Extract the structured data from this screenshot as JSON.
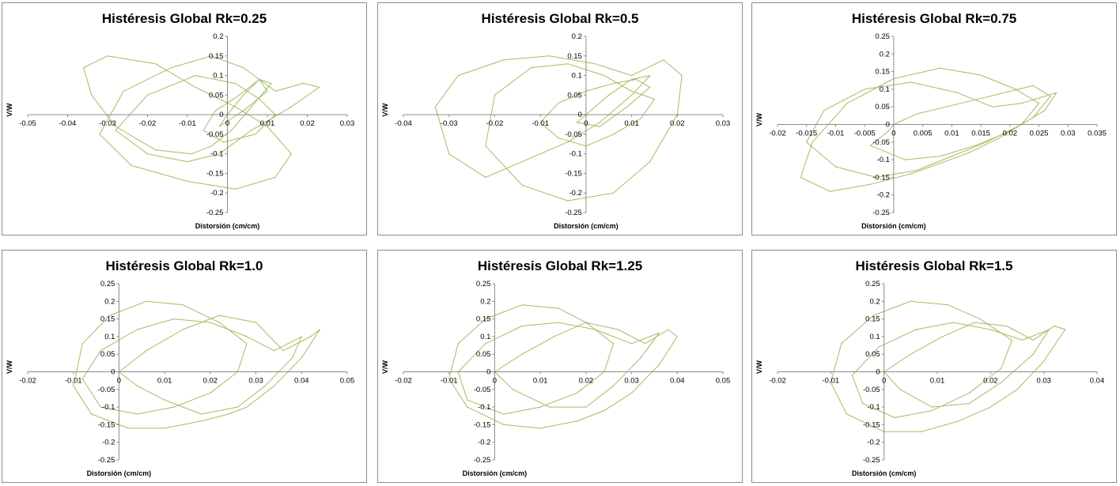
{
  "chart_data": [
    {
      "type": "scatter",
      "title": "Histéresis Global Rk=0.25",
      "xlabel": "Distorsión (cm/cm)",
      "ylabel": "V/W",
      "xlim": [
        -0.05,
        0.03
      ],
      "ylim": [
        -0.25,
        0.2
      ],
      "xticks": [
        "-0.05",
        "-0.04",
        "-0.03",
        "-0.02",
        "-0.01",
        "0",
        "0.01",
        "0.02",
        "0.03"
      ],
      "yticks": [
        "-0.25",
        "-0.2",
        "-0.15",
        "-0.1",
        "-0.05",
        "0",
        "0.05",
        "0.1",
        "0.15",
        "0.2"
      ],
      "series_color": "#9bbb59",
      "grid": false,
      "legend": "none",
      "series": [
        {
          "x": [
            0,
            0.004,
            0.008,
            0.011,
            0.006,
            0.001,
            -0.004,
            -0.009,
            -0.018,
            -0.028,
            -0.034,
            -0.036,
            -0.03,
            -0.018,
            -0.008,
            0.002,
            0.01,
            0.016,
            0.012,
            0.002,
            -0.01,
            -0.024,
            -0.032,
            -0.026,
            -0.014,
            -0.004,
            0.004,
            0.012,
            0.019,
            0.023,
            0.016,
            0.006,
            -0.002,
            -0.01,
            -0.02,
            -0.028,
            -0.02,
            -0.008,
            0.002,
            0.008,
            0.012,
            0.007,
            -0.001,
            -0.006,
            -0.003,
            0.003,
            0.008,
            0.01,
            0.004,
            -0.002,
            0
          ],
          "y": [
            0,
            0.05,
            0.09,
            0.08,
            0.02,
            -0.04,
            -0.08,
            -0.1,
            -0.09,
            -0.03,
            0.05,
            0.12,
            0.15,
            0.13,
            0.07,
            0.02,
            -0.03,
            -0.1,
            -0.16,
            -0.19,
            -0.17,
            -0.13,
            -0.05,
            0.06,
            0.12,
            0.15,
            0.12,
            0.06,
            0.08,
            0.07,
            0.02,
            -0.04,
            -0.1,
            -0.12,
            -0.1,
            -0.04,
            0.05,
            0.1,
            0.08,
            0.04,
            0.0,
            -0.05,
            -0.07,
            -0.04,
            0.01,
            0.05,
            0.09,
            0.06,
            0.01,
            -0.03,
            0
          ]
        }
      ]
    },
    {
      "type": "scatter",
      "title": "Histéresis Global Rk=0.5",
      "xlabel": "Distorsión (cm/cm)",
      "ylabel": "V/W",
      "xlim": [
        -0.04,
        0.03
      ],
      "ylim": [
        -0.25,
        0.2
      ],
      "xticks": [
        "-0.04",
        "-0.03",
        "-0.02",
        "-0.01",
        "0",
        "0.01",
        "0.02",
        "0.03"
      ],
      "yticks": [
        "-0.25",
        "-0.2",
        "-0.15",
        "-0.1",
        "-0.05",
        "0",
        "0.05",
        "0.1",
        "0.15",
        "0.2"
      ],
      "series_color": "#9bbb59",
      "grid": false,
      "legend": "none",
      "series": [
        {
          "x": [
            0,
            0.005,
            0.01,
            0.014,
            0.01,
            0.003,
            -0.004,
            -0.012,
            -0.022,
            -0.03,
            -0.033,
            -0.028,
            -0.018,
            -0.008,
            0.002,
            0.01,
            0.017,
            0.021,
            0.02,
            0.014,
            0.006,
            -0.004,
            -0.014,
            -0.022,
            -0.02,
            -0.012,
            -0.004,
            0.004,
            0.01,
            0.015,
            0.012,
            0.006,
            0.0,
            -0.006,
            -0.01,
            -0.006,
            0.0,
            0.006,
            0.011,
            0.014,
            0.009,
            0.003,
            -0.002,
            0
          ],
          "y": [
            0,
            0.05,
            0.09,
            0.1,
            0.05,
            -0.02,
            -0.07,
            -0.11,
            -0.16,
            -0.1,
            0.02,
            0.1,
            0.14,
            0.15,
            0.13,
            0.1,
            0.14,
            0.1,
            0.0,
            -0.12,
            -0.2,
            -0.22,
            -0.18,
            -0.08,
            0.05,
            0.12,
            0.13,
            0.1,
            0.06,
            0.04,
            -0.01,
            -0.05,
            -0.08,
            -0.06,
            -0.02,
            0.03,
            0.06,
            0.08,
            0.09,
            0.07,
            0.02,
            -0.03,
            -0.02,
            0
          ]
        }
      ]
    },
    {
      "type": "scatter",
      "title": "Histéresis Global Rk=0.75",
      "xlabel": "Distorsión (cm/cm)",
      "ylabel": "V/W",
      "xlim": [
        -0.02,
        0.035
      ],
      "ylim": [
        -0.25,
        0.25
      ],
      "xticks": [
        "-0.02",
        "-0.015",
        "-0.01",
        "-0.005",
        "0",
        "0.005",
        "0.01",
        "0.015",
        "0.02",
        "0.025",
        "0.03",
        "0.035"
      ],
      "yticks": [
        "-0.25",
        "-0.2",
        "-0.15",
        "-0.1",
        "-0.05",
        "0",
        "0.05",
        "0.1",
        "0.15",
        "0.2",
        "0.25"
      ],
      "series_color": "#9bbb59",
      "grid": false,
      "legend": "none",
      "series": [
        {
          "x": [
            0,
            0.004,
            0.009,
            0.014,
            0.019,
            0.024,
            0.027,
            0.024,
            0.018,
            0.013,
            0.008,
            0.003,
            -0.004,
            -0.011,
            -0.016,
            -0.014,
            -0.008,
            0.0,
            0.008,
            0.015,
            0.021,
            0.025,
            0.022,
            0.016,
            0.01,
            0.004,
            -0.003,
            -0.01,
            -0.015,
            -0.012,
            -0.005,
            0.003,
            0.011,
            0.017,
            0.022,
            0.028,
            0.026,
            0.02,
            0.014,
            0.008,
            0.002,
            -0.004,
            -0.001,
            0
          ],
          "y": [
            0,
            0.03,
            0.05,
            0.07,
            0.09,
            0.11,
            0.08,
            0.02,
            -0.04,
            -0.08,
            -0.11,
            -0.14,
            -0.17,
            -0.19,
            -0.15,
            -0.05,
            0.06,
            0.13,
            0.16,
            0.14,
            0.1,
            0.06,
            0.0,
            -0.05,
            -0.09,
            -0.13,
            -0.15,
            -0.12,
            -0.05,
            0.04,
            0.1,
            0.12,
            0.09,
            0.05,
            0.06,
            0.09,
            0.04,
            -0.02,
            -0.06,
            -0.09,
            -0.1,
            -0.06,
            -0.02,
            0
          ]
        }
      ]
    },
    {
      "type": "scatter",
      "title": "Histéresis Global Rk=1.0",
      "xlabel": "Distorsión (cm/cm)",
      "ylabel": "V/W",
      "xlim": [
        -0.02,
        0.05
      ],
      "ylim": [
        -0.25,
        0.25
      ],
      "xticks": [
        "-0.02",
        "-0.01",
        "0",
        "0.01",
        "0.02",
        "0.03",
        "0.04",
        "0.05"
      ],
      "yticks": [
        "-0.25",
        "-0.2",
        "-0.15",
        "-0.1",
        "-0.05",
        "0",
        "0.05",
        "0.1",
        "0.15",
        "0.2",
        "0.25"
      ],
      "series_color": "#9bbb59",
      "grid": false,
      "legend": "none",
      "series": [
        {
          "x": [
            0,
            0.006,
            0.014,
            0.022,
            0.03,
            0.036,
            0.042,
            0.044,
            0.04,
            0.034,
            0.028,
            0.024,
            0.018,
            0.01,
            0.002,
            -0.006,
            -0.01,
            -0.008,
            -0.002,
            0.006,
            0.014,
            0.022,
            0.028,
            0.026,
            0.02,
            0.012,
            0.004,
            -0.004,
            -0.008,
            -0.004,
            0.004,
            0.012,
            0.02,
            0.028,
            0.034,
            0.04,
            0.038,
            0.032,
            0.026,
            0.018,
            0.01,
            0.004,
            0
          ],
          "y": [
            0,
            0.06,
            0.12,
            0.16,
            0.14,
            0.06,
            0.1,
            0.12,
            0.04,
            -0.04,
            -0.1,
            -0.12,
            -0.14,
            -0.16,
            -0.16,
            -0.12,
            -0.04,
            0.08,
            0.16,
            0.2,
            0.19,
            0.14,
            0.08,
            0.0,
            -0.06,
            -0.1,
            -0.12,
            -0.1,
            -0.02,
            0.06,
            0.12,
            0.15,
            0.14,
            0.1,
            0.06,
            0.1,
            0.04,
            -0.04,
            -0.1,
            -0.12,
            -0.08,
            -0.04,
            0
          ]
        }
      ]
    },
    {
      "type": "scatter",
      "title": "Histéresis Global Rk=1.25",
      "xlabel": "Distorsión (cm/cm)",
      "ylabel": "V/W",
      "xlim": [
        -0.02,
        0.05
      ],
      "ylim": [
        -0.25,
        0.25
      ],
      "xticks": [
        "-0.02",
        "-0.01",
        "0",
        "0.01",
        "0.02",
        "0.03",
        "0.04",
        "0.05"
      ],
      "yticks": [
        "-0.25",
        "-0.2",
        "-0.15",
        "-0.1",
        "-0.05",
        "0",
        "0.05",
        "0.1",
        "0.15",
        "0.2",
        "0.25"
      ],
      "series_color": "#9bbb59",
      "grid": false,
      "legend": "none",
      "series": [
        {
          "x": [
            0,
            0.006,
            0.013,
            0.02,
            0.027,
            0.033,
            0.038,
            0.04,
            0.036,
            0.03,
            0.024,
            0.018,
            0.01,
            0.002,
            -0.006,
            -0.01,
            -0.008,
            -0.002,
            0.006,
            0.014,
            0.02,
            0.026,
            0.024,
            0.018,
            0.01,
            0.002,
            -0.006,
            -0.008,
            -0.002,
            0.006,
            0.014,
            0.022,
            0.03,
            0.036,
            0.032,
            0.026,
            0.02,
            0.012,
            0.004,
            0
          ],
          "y": [
            0,
            0.05,
            0.1,
            0.14,
            0.12,
            0.08,
            0.12,
            0.1,
            0.02,
            -0.06,
            -0.11,
            -0.14,
            -0.16,
            -0.15,
            -0.1,
            -0.02,
            0.08,
            0.15,
            0.19,
            0.18,
            0.14,
            0.08,
            0.0,
            -0.06,
            -0.1,
            -0.12,
            -0.08,
            0.0,
            0.08,
            0.13,
            0.14,
            0.12,
            0.08,
            0.11,
            0.04,
            -0.04,
            -0.1,
            -0.1,
            -0.05,
            0
          ]
        }
      ]
    },
    {
      "type": "scatter",
      "title": "Histéresis Global Rk=1.5",
      "xlabel": "Distorsión (cm/cm)",
      "ylabel": "V/W",
      "xlim": [
        -0.02,
        0.04
      ],
      "ylim": [
        -0.25,
        0.25
      ],
      "xticks": [
        "-0.02",
        "-0.01",
        "0",
        "0.01",
        "0.02",
        "0.03",
        "0.04"
      ],
      "yticks": [
        "-0.25",
        "-0.2",
        "-0.15",
        "-0.1",
        "-0.05",
        "0",
        "0.05",
        "0.1",
        "0.15",
        "0.2",
        "0.25"
      ],
      "series_color": "#9bbb59",
      "grid": false,
      "legend": "none",
      "series": [
        {
          "x": [
            0,
            0.005,
            0.011,
            0.017,
            0.023,
            0.028,
            0.032,
            0.034,
            0.03,
            0.025,
            0.02,
            0.014,
            0.007,
            0.0,
            -0.007,
            -0.01,
            -0.008,
            -0.002,
            0.005,
            0.012,
            0.018,
            0.024,
            0.022,
            0.016,
            0.009,
            0.002,
            -0.004,
            -0.006,
            -0.001,
            0.006,
            0.013,
            0.02,
            0.026,
            0.031,
            0.028,
            0.022,
            0.016,
            0.009,
            0.003,
            0
          ],
          "y": [
            0,
            0.05,
            0.1,
            0.14,
            0.13,
            0.09,
            0.13,
            0.12,
            0.03,
            -0.05,
            -0.1,
            -0.14,
            -0.17,
            -0.17,
            -0.12,
            -0.03,
            0.08,
            0.16,
            0.2,
            0.19,
            0.15,
            0.09,
            0.01,
            -0.06,
            -0.11,
            -0.13,
            -0.09,
            -0.01,
            0.07,
            0.12,
            0.14,
            0.12,
            0.09,
            0.12,
            0.05,
            -0.03,
            -0.09,
            -0.1,
            -0.05,
            0
          ]
        }
      ]
    }
  ]
}
